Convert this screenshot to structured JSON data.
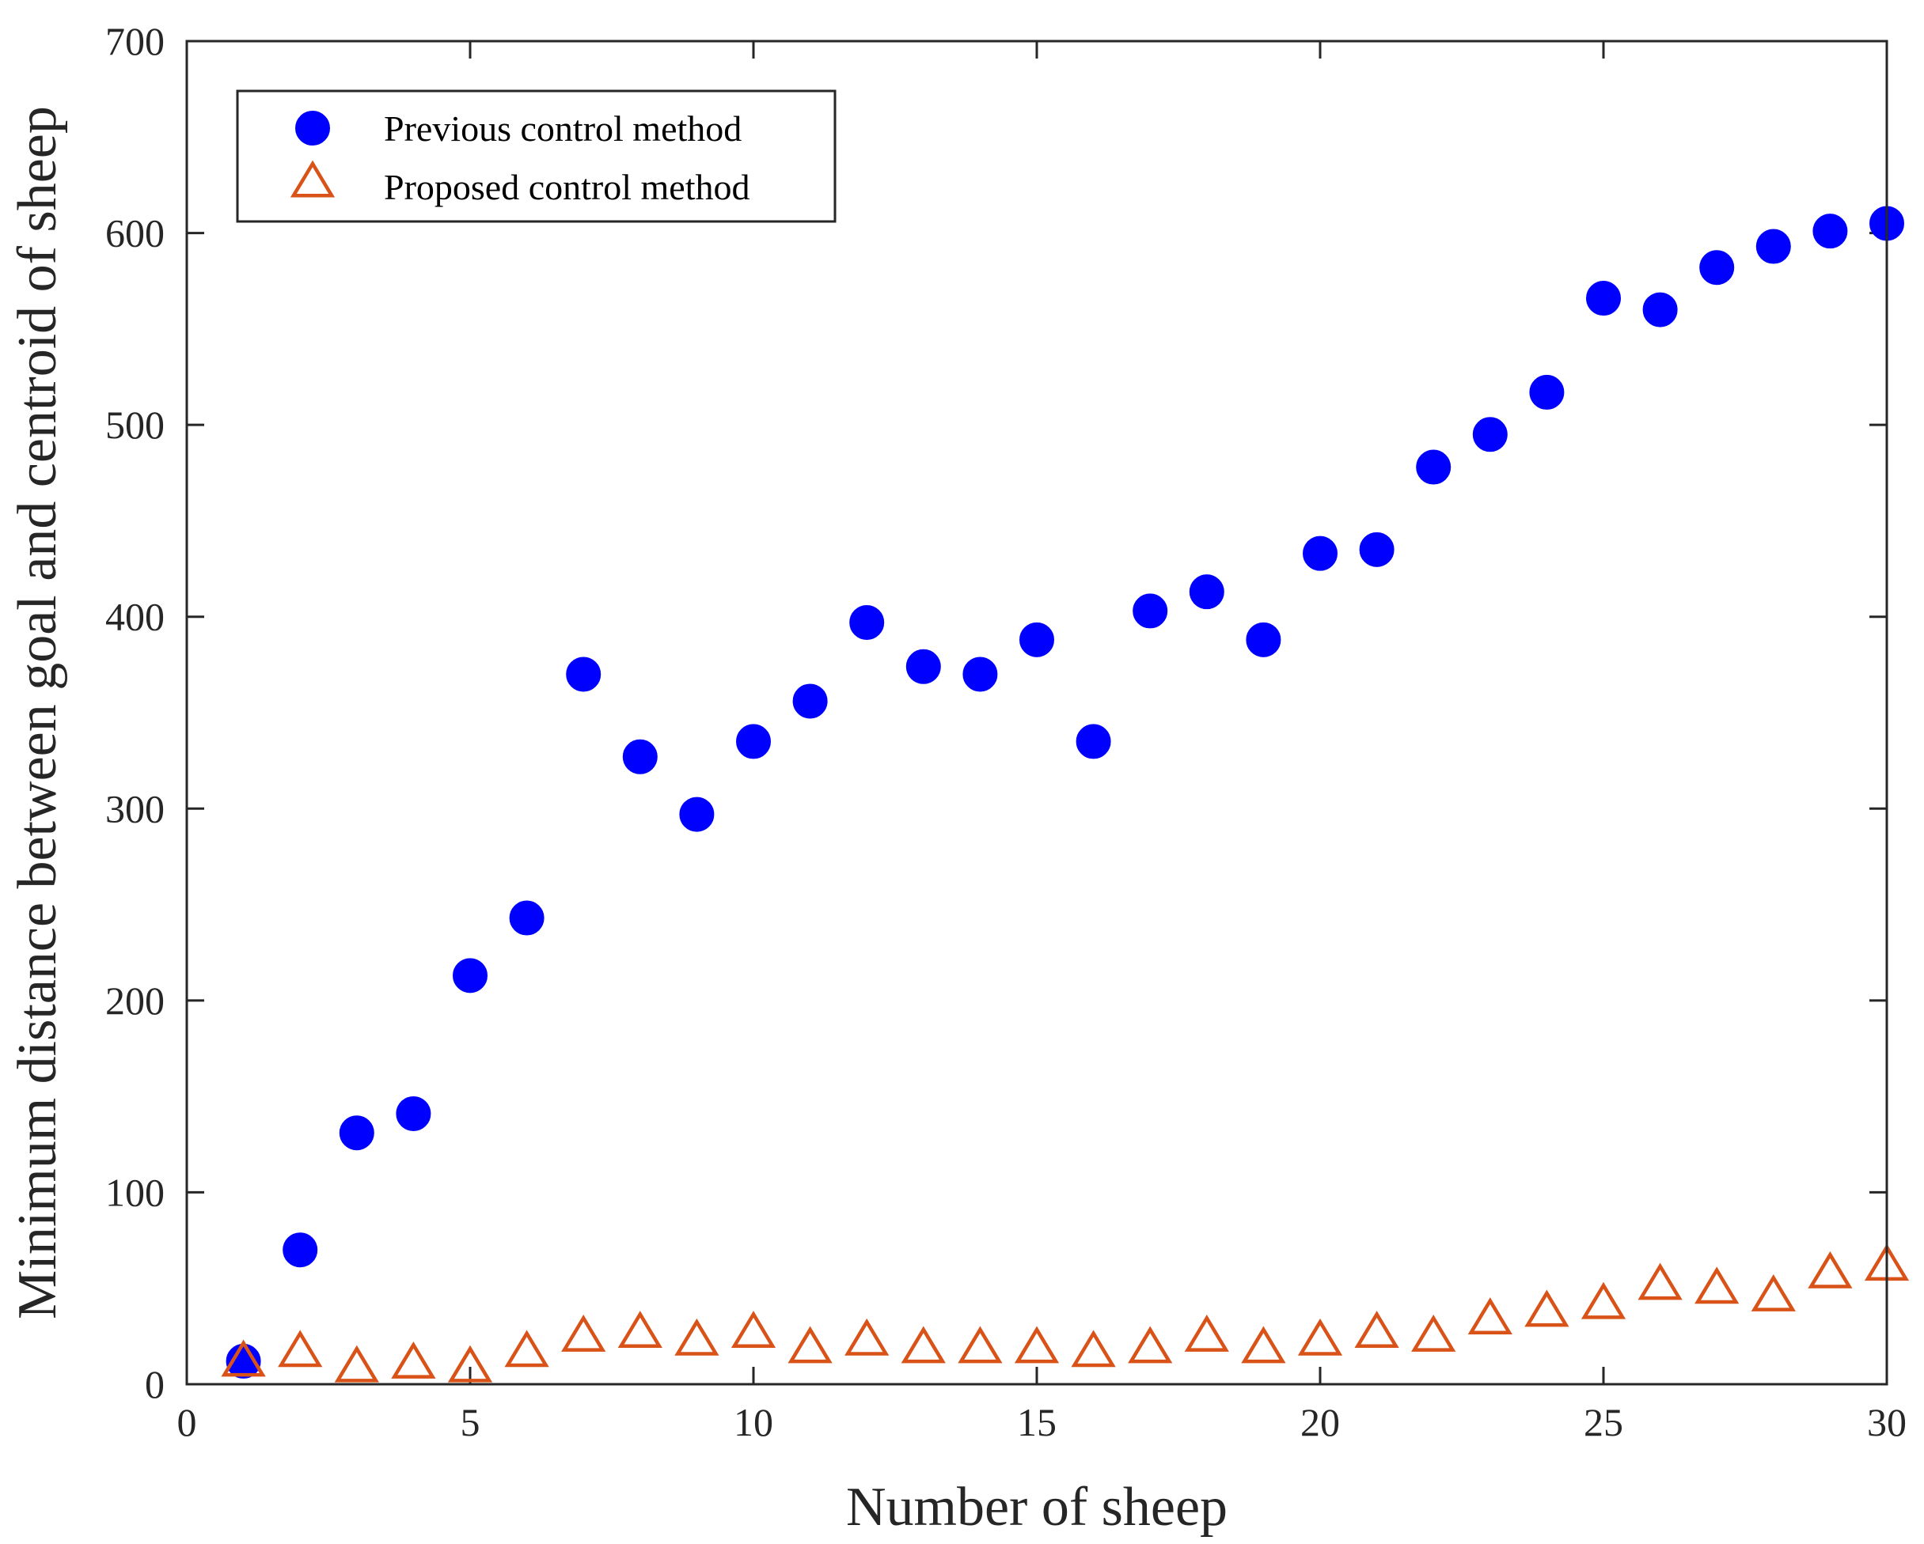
{
  "chart_data": {
    "type": "scatter",
    "title": "",
    "xlabel": "Number of sheep",
    "ylabel": "Minimum distance between goal and centroid of sheep",
    "xlim": [
      0,
      30
    ],
    "ylim": [
      0,
      700
    ],
    "xticks": [
      0,
      5,
      10,
      15,
      20,
      25,
      30
    ],
    "yticks": [
      0,
      100,
      200,
      300,
      400,
      500,
      600,
      700
    ],
    "grid": false,
    "legend_position": "top-left",
    "x": [
      1,
      2,
      3,
      4,
      5,
      6,
      7,
      8,
      9,
      10,
      11,
      12,
      13,
      14,
      15,
      16,
      17,
      18,
      19,
      20,
      21,
      22,
      23,
      24,
      25,
      26,
      27,
      28,
      29,
      30
    ],
    "series": [
      {
        "name": "Previous control method",
        "marker": "circle",
        "color": "#0000ff",
        "values": [
          12,
          70,
          131,
          141,
          213,
          243,
          370,
          327,
          297,
          335,
          356,
          397,
          374,
          370,
          388,
          335,
          403,
          413,
          388,
          433,
          435,
          478,
          495,
          517,
          566,
          560,
          582,
          593,
          601,
          605
        ]
      },
      {
        "name": "Proposed control method",
        "marker": "triangle-open",
        "color": "#d95319",
        "values": [
          12,
          17,
          9,
          11,
          9,
          17,
          25,
          27,
          23,
          27,
          19,
          23,
          19,
          19,
          19,
          17,
          19,
          25,
          19,
          23,
          27,
          25,
          34,
          38,
          42,
          52,
          50,
          46,
          58,
          62
        ]
      }
    ]
  }
}
